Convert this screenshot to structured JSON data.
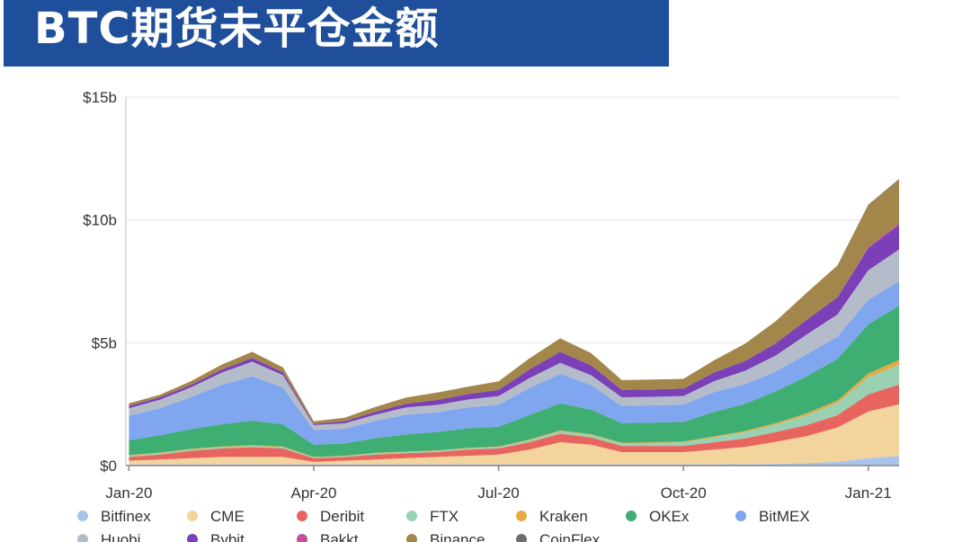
{
  "title": "BTC期货未平仓金额",
  "chart_data": {
    "type": "area",
    "stacked": true,
    "y_ticks": [
      "$15b",
      "$10b",
      "$5b",
      "$0"
    ],
    "y_tick_values": [
      15,
      10,
      5,
      0
    ],
    "x_ticks": [
      "Jan-20",
      "Apr-20",
      "Jul-20",
      "Oct-20",
      "Jan-21"
    ],
    "x_tick_values": [
      0,
      3,
      6,
      9,
      12
    ],
    "ylim": [
      0,
      15
    ],
    "xlim": [
      -0.05,
      12.5
    ],
    "grid": "horizontal",
    "legend_position": "bottom",
    "x": [
      0,
      0.5,
      1,
      1.5,
      2,
      2.5,
      3,
      3.5,
      4,
      4.5,
      5,
      5.5,
      6,
      6.5,
      7,
      7.5,
      8,
      8.5,
      9,
      9.5,
      10,
      10.5,
      11,
      11.5,
      12,
      12.5
    ],
    "series": [
      {
        "name": "Bitfinex",
        "color": "#a9c4ea",
        "values": [
          0.05,
          0.05,
          0.05,
          0.05,
          0.05,
          0.05,
          0.05,
          0.05,
          0.05,
          0.05,
          0.05,
          0.05,
          0.05,
          0.05,
          0.05,
          0.05,
          0.05,
          0.05,
          0.05,
          0.05,
          0.06,
          0.07,
          0.1,
          0.15,
          0.3,
          0.4
        ]
      },
      {
        "name": "CME",
        "color": "#f2d49c",
        "values": [
          0.15,
          0.2,
          0.25,
          0.3,
          0.3,
          0.3,
          0.1,
          0.15,
          0.2,
          0.25,
          0.3,
          0.35,
          0.4,
          0.6,
          0.9,
          0.8,
          0.5,
          0.5,
          0.5,
          0.6,
          0.7,
          0.9,
          1.1,
          1.4,
          1.9,
          2.1
        ]
      },
      {
        "name": "Deribit",
        "color": "#e8655f",
        "values": [
          0.15,
          0.2,
          0.3,
          0.35,
          0.4,
          0.35,
          0.15,
          0.15,
          0.2,
          0.2,
          0.2,
          0.25,
          0.25,
          0.3,
          0.35,
          0.3,
          0.25,
          0.25,
          0.25,
          0.3,
          0.35,
          0.4,
          0.45,
          0.5,
          0.7,
          0.8
        ]
      },
      {
        "name": "FTX",
        "color": "#9ad1b2",
        "values": [
          0.05,
          0.05,
          0.05,
          0.05,
          0.05,
          0.05,
          0.03,
          0.03,
          0.05,
          0.05,
          0.05,
          0.05,
          0.05,
          0.08,
          0.1,
          0.1,
          0.1,
          0.12,
          0.15,
          0.2,
          0.25,
          0.3,
          0.4,
          0.5,
          0.7,
          0.8
        ]
      },
      {
        "name": "Kraken",
        "color": "#e8a842",
        "values": [
          0.03,
          0.03,
          0.03,
          0.03,
          0.03,
          0.03,
          0.02,
          0.02,
          0.02,
          0.02,
          0.02,
          0.02,
          0.03,
          0.03,
          0.03,
          0.03,
          0.03,
          0.03,
          0.03,
          0.04,
          0.05,
          0.06,
          0.08,
          0.1,
          0.15,
          0.2
        ]
      },
      {
        "name": "OKEx",
        "color": "#3fae73",
        "values": [
          0.6,
          0.7,
          0.8,
          0.9,
          1.0,
          0.9,
          0.5,
          0.5,
          0.6,
          0.7,
          0.75,
          0.8,
          0.8,
          1.0,
          1.1,
          1.0,
          0.8,
          0.8,
          0.8,
          1.0,
          1.1,
          1.3,
          1.5,
          1.7,
          2.0,
          2.2
        ]
      },
      {
        "name": "BitMEX",
        "color": "#7fa6ee",
        "values": [
          1.0,
          1.1,
          1.3,
          1.6,
          1.8,
          1.5,
          0.6,
          0.6,
          0.7,
          0.8,
          0.8,
          0.85,
          0.9,
          1.1,
          1.2,
          1.0,
          0.7,
          0.7,
          0.7,
          0.8,
          0.8,
          0.8,
          0.9,
          0.9,
          1.0,
          1.0
        ]
      },
      {
        "name": "Huobi",
        "color": "#b5bcc9",
        "values": [
          0.3,
          0.35,
          0.4,
          0.5,
          0.6,
          0.5,
          0.2,
          0.22,
          0.25,
          0.3,
          0.3,
          0.32,
          0.35,
          0.4,
          0.45,
          0.4,
          0.35,
          0.35,
          0.35,
          0.45,
          0.55,
          0.65,
          0.8,
          0.9,
          1.2,
          1.3
        ]
      },
      {
        "name": "Bybit",
        "color": "#7b3fb8",
        "values": [
          0.1,
          0.1,
          0.1,
          0.12,
          0.15,
          0.12,
          0.05,
          0.08,
          0.12,
          0.15,
          0.2,
          0.22,
          0.25,
          0.35,
          0.45,
          0.4,
          0.3,
          0.3,
          0.3,
          0.35,
          0.4,
          0.5,
          0.6,
          0.7,
          0.9,
          1.0
        ]
      },
      {
        "name": "Bakkt",
        "color": "#c44d9e",
        "values": [
          0.0,
          0.0,
          0.0,
          0.0,
          0.0,
          0.0,
          0.0,
          0.0,
          0.0,
          0.0,
          0.0,
          0.0,
          0.0,
          0.0,
          0.0,
          0.0,
          0.0,
          0.0,
          0.0,
          0.0,
          0.0,
          0.0,
          0.0,
          0.0,
          0.05,
          0.05
        ]
      },
      {
        "name": "Binance",
        "color": "#a2864a",
        "values": [
          0.1,
          0.1,
          0.15,
          0.2,
          0.25,
          0.2,
          0.1,
          0.15,
          0.2,
          0.25,
          0.3,
          0.3,
          0.35,
          0.45,
          0.55,
          0.5,
          0.4,
          0.4,
          0.4,
          0.5,
          0.7,
          0.9,
          1.1,
          1.3,
          1.7,
          1.8
        ]
      },
      {
        "name": "CoinFlex",
        "color": "#6e6e6e",
        "values": [
          0.0,
          0.0,
          0.0,
          0.0,
          0.0,
          0.0,
          0.0,
          0.0,
          0.0,
          0.0,
          0.0,
          0.0,
          0.0,
          0.0,
          0.0,
          0.0,
          0.0,
          0.0,
          0.0,
          0.0,
          0.0,
          0.0,
          0.0,
          0.0,
          0.02,
          0.02
        ]
      }
    ]
  }
}
